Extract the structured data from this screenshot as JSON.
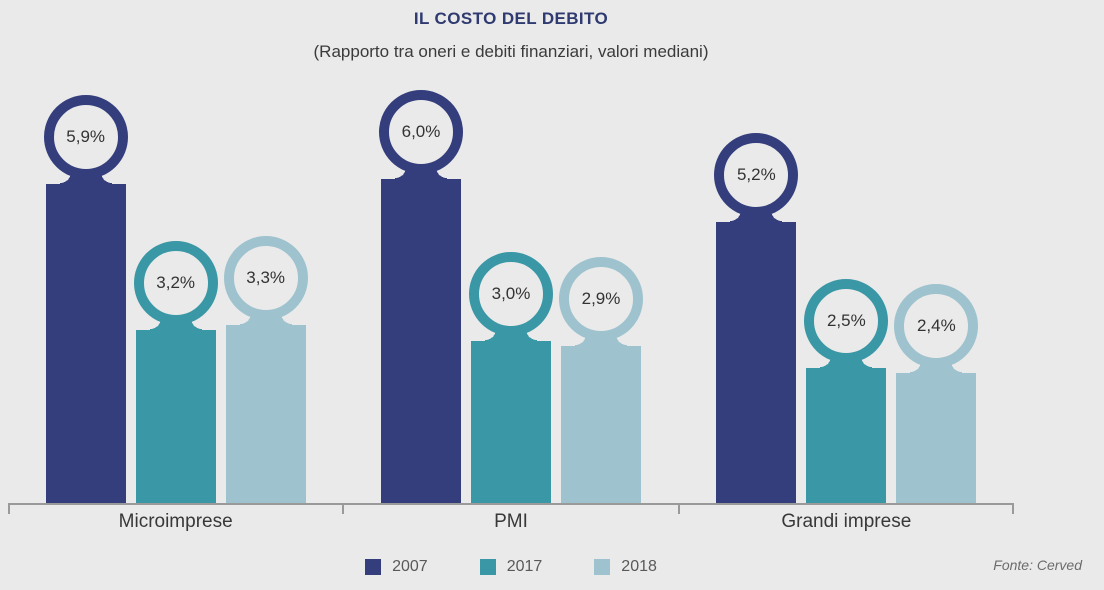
{
  "header": {
    "title": "IL COSTO DEL DEBITO",
    "subtitle": "(Rapporto tra oneri e debiti finanziari, valori mediani)"
  },
  "source": "Fonte: Cerved",
  "colors": {
    "background": "#EAEAEA",
    "title": "#2E3A70",
    "axis": "#9A9A9A",
    "series_2007": "#343E7C",
    "series_2017": "#3A97A5",
    "series_2018": "#9EC3CE"
  },
  "chart_data": {
    "type": "bar",
    "title": "IL COSTO DEL DEBITO",
    "subtitle": "(Rapporto tra oneri e debiti finanziari, valori mediani)",
    "categories": [
      "Microimprese",
      "PMI",
      "Grandi imprese"
    ],
    "series": [
      {
        "name": "2007",
        "color": "#343E7C",
        "values": [
          5.9,
          6.0,
          5.2
        ],
        "labels": [
          "5,9%",
          "6,0%",
          "5,2%"
        ]
      },
      {
        "name": "2017",
        "color": "#3A97A5",
        "values": [
          3.2,
          3.0,
          2.5
        ],
        "labels": [
          "3,2%",
          "3,0%",
          "2,5%"
        ]
      },
      {
        "name": "2018",
        "color": "#9EC3CE",
        "values": [
          3.3,
          2.9,
          2.4
        ],
        "labels": [
          "3,3%",
          "2,9%",
          "2,4%"
        ]
      }
    ],
    "value_suffix": "%",
    "decimal_separator": ",",
    "ylim": [
      0,
      6.5
    ],
    "grid": false,
    "yaxis_visible": false,
    "legend_position": "bottom",
    "value_label_style": "inside-ring-above-bar"
  }
}
